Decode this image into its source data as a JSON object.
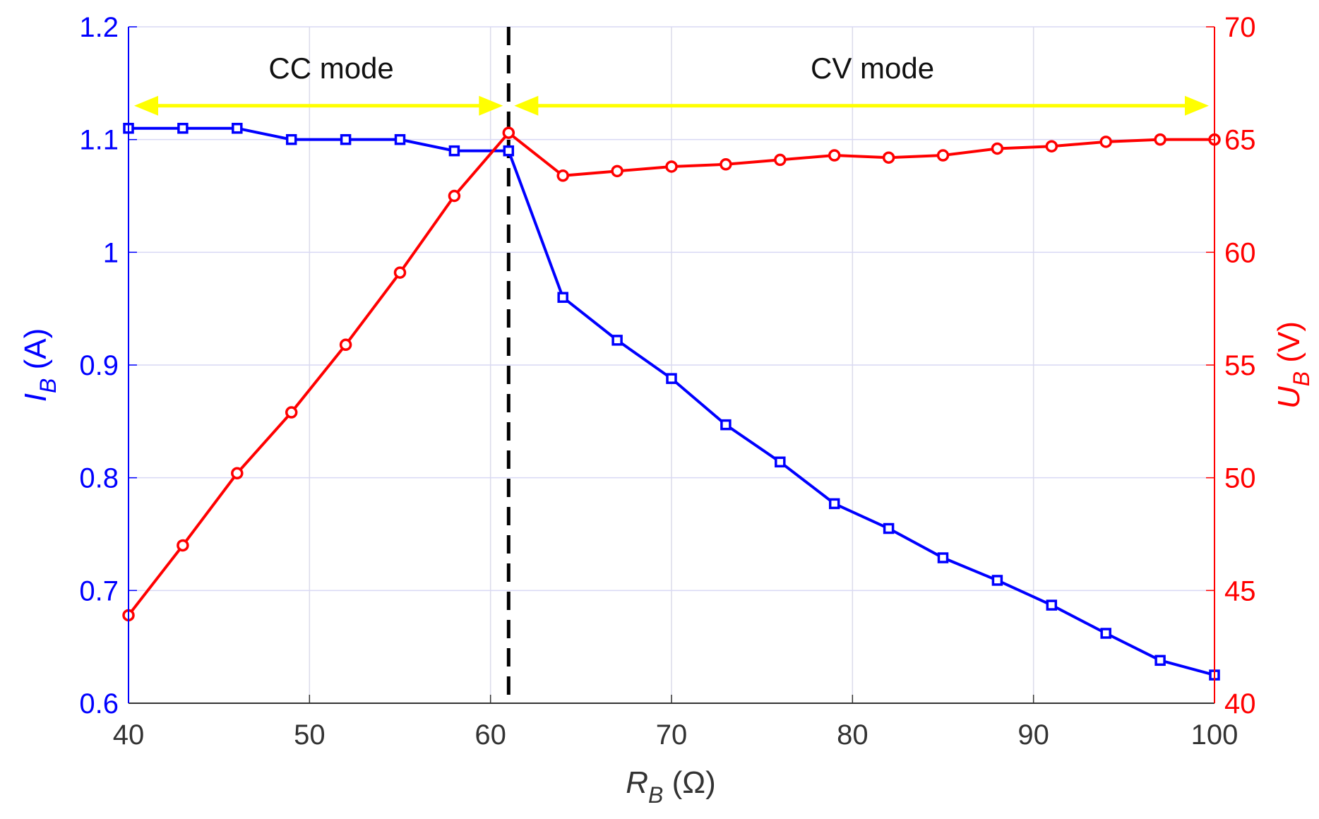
{
  "chart_data": {
    "type": "line",
    "x": [
      40,
      43,
      46,
      49,
      52,
      55,
      58,
      61,
      64,
      67,
      70,
      73,
      76,
      79,
      82,
      85,
      88,
      91,
      94,
      97,
      100
    ],
    "series": [
      {
        "name": "I_B",
        "axis": "left",
        "color": "#0000ff",
        "marker": "square",
        "values": [
          1.11,
          1.11,
          1.11,
          1.1,
          1.1,
          1.1,
          1.09,
          1.09,
          0.96,
          0.922,
          0.888,
          0.847,
          0.814,
          0.777,
          0.755,
          0.729,
          0.709,
          0.687,
          0.662,
          0.638,
          0.625
        ]
      },
      {
        "name": "U_B",
        "axis": "right",
        "color": "#ff0000",
        "marker": "circle",
        "values": [
          43.9,
          47.0,
          50.2,
          52.9,
          55.9,
          59.1,
          62.5,
          65.3,
          63.4,
          63.6,
          63.8,
          63.9,
          64.1,
          64.3,
          64.2,
          64.3,
          64.6,
          64.7,
          64.9,
          65.0,
          65.0
        ]
      }
    ],
    "xlim": [
      40,
      100
    ],
    "ylim_left": [
      0.6,
      1.2
    ],
    "ylim_right": [
      40,
      70
    ],
    "xticks": [
      "40",
      "50",
      "60",
      "70",
      "80",
      "90",
      "100"
    ],
    "yticks_left": [
      "0.6",
      "0.7",
      "0.8",
      "0.9",
      "1",
      "1.1",
      "1.2"
    ],
    "yticks_right": [
      "40",
      "45",
      "50",
      "55",
      "60",
      "65",
      "70"
    ],
    "xlabel": {
      "main": "R",
      "sub": "B",
      "unit": " (Ω)"
    },
    "ylabel_left": {
      "main": "I",
      "sub": "B",
      "unit": " (A)"
    },
    "ylabel_right": {
      "main": "U",
      "sub": "B",
      "unit": " (V)"
    },
    "grid": true,
    "boundary_x": 61,
    "annotations": [
      {
        "text": "CC mode",
        "x": 51.2,
        "y": 1.163,
        "from": 40,
        "to": 61
      },
      {
        "text": "CV mode",
        "x": 81.1,
        "y": 1.163,
        "from": 61,
        "to": 100
      }
    ],
    "arrow_y": 1.13,
    "colors": {
      "left_axis": "#0000ff",
      "right_axis": "#ff0000",
      "arrow": "#ffff00",
      "boundary": "#000000"
    }
  }
}
